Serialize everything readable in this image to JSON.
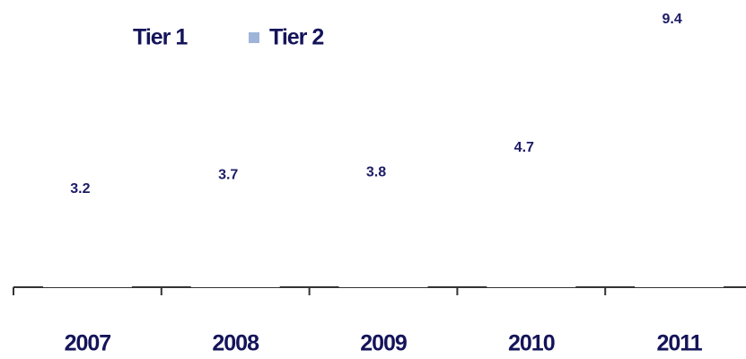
{
  "chart_data": {
    "type": "bar",
    "legend": [
      {
        "name": "Tier 1",
        "color": "#ffffff"
      },
      {
        "name": "Tier 2",
        "color": "#9fb4d9"
      }
    ],
    "categories": [
      "2007",
      "2008",
      "2009",
      "2010",
      "2011"
    ],
    "values": [
      3.2,
      3.7,
      3.8,
      4.7,
      9.4
    ],
    "color": "#ffffff"
  }
}
